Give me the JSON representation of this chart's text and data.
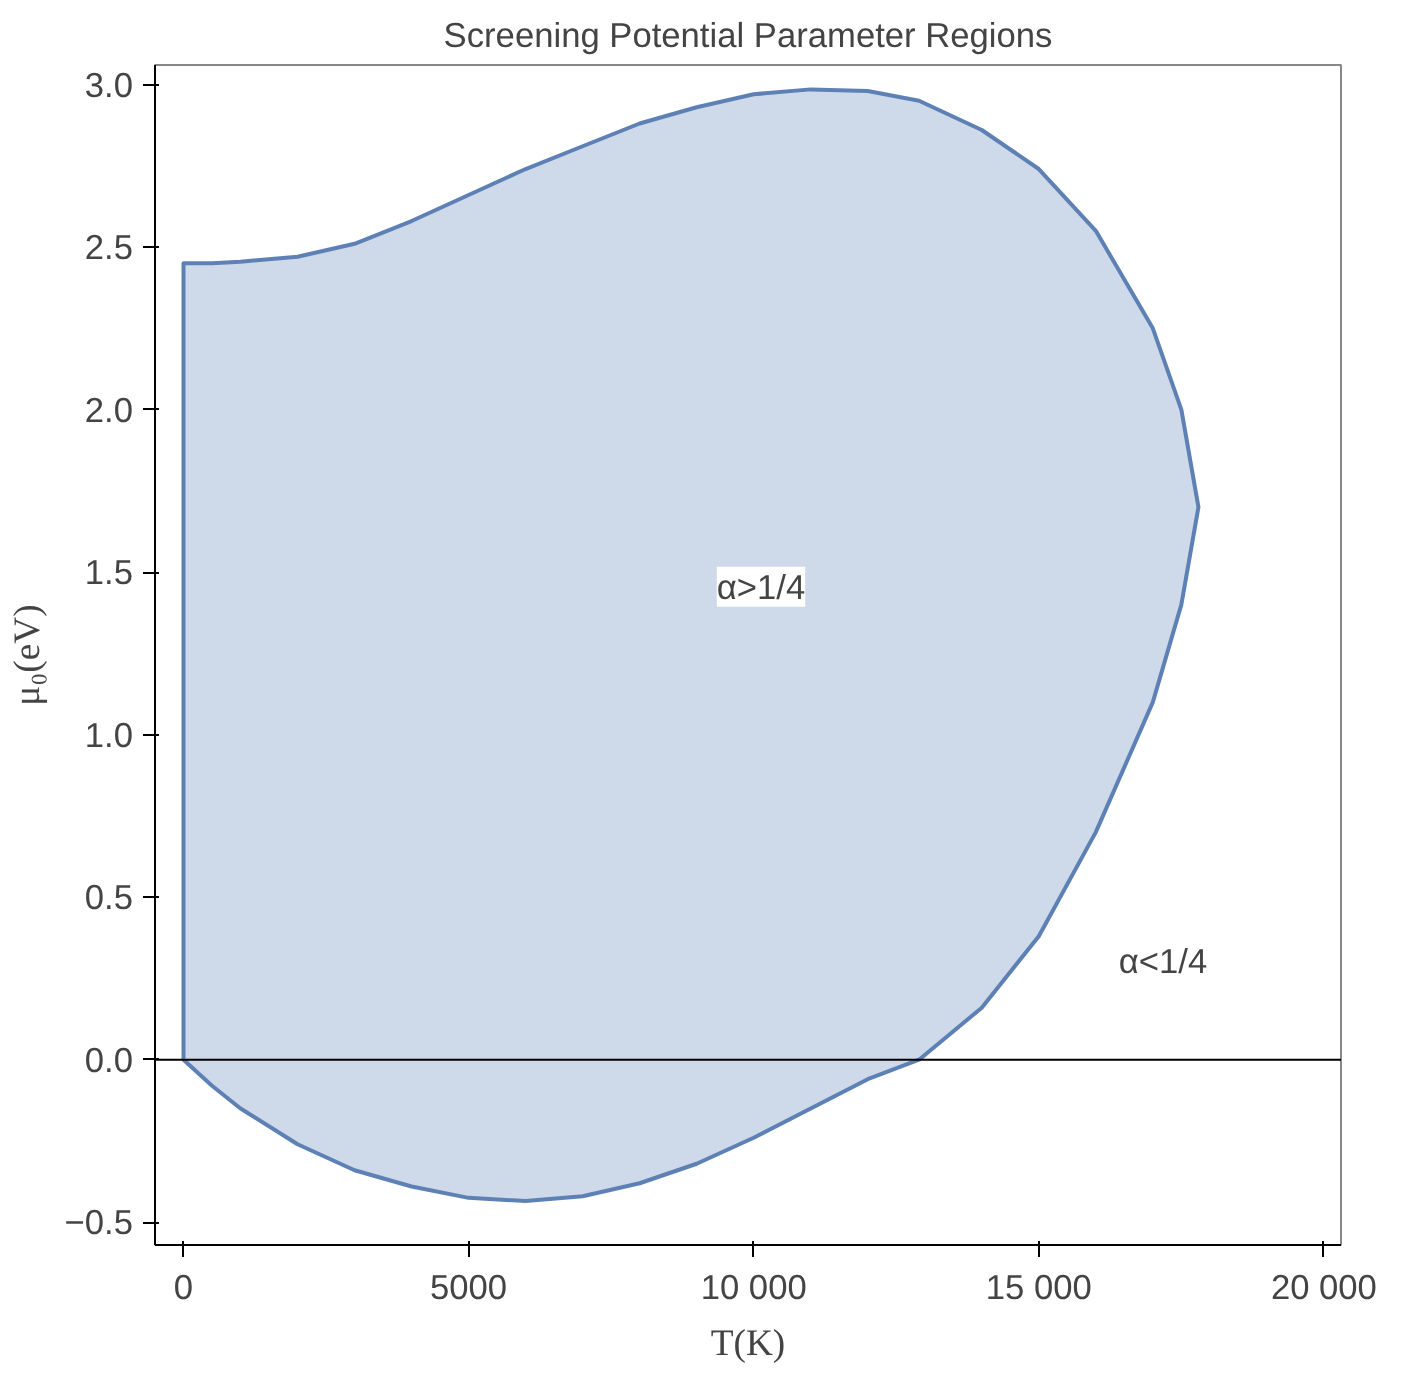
{
  "chart_data": {
    "type": "area",
    "title": "Screening Potential Parameter Regions",
    "xlabel": "T(K)",
    "ylabel": "μ₀(eV)",
    "series": [
      {
        "color": "#5e81b5",
        "x": [
          0,
          500,
          1000,
          2000,
          3000,
          4000,
          5000,
          6000,
          7000,
          8000,
          9000,
          10000,
          11000,
          12000,
          12900,
          14000,
          15000,
          16000,
          17000,
          17500,
          17800,
          17500,
          17000,
          16000,
          15000,
          14000,
          12900,
          12000,
          11000,
          10000,
          9000,
          8000,
          7000,
          6000,
          5000,
          4000,
          3000,
          2000,
          1000,
          500,
          0
        ],
        "values": [
          2.45,
          2.45,
          2.455,
          2.47,
          2.51,
          2.58,
          2.66,
          2.74,
          2.81,
          2.88,
          2.93,
          2.97,
          2.985,
          2.98,
          2.95,
          2.86,
          2.74,
          2.55,
          2.25,
          2.0,
          1.7,
          1.4,
          1.1,
          0.7,
          0.38,
          0.16,
          0,
          -0.06,
          -0.15,
          -0.24,
          -0.32,
          -0.38,
          -0.42,
          -0.435,
          -0.425,
          -0.39,
          -0.34,
          -0.26,
          -0.15,
          -0.08,
          0
        ]
      }
    ],
    "xlim": [
      -500,
      20300
    ],
    "ylim": [
      -0.57,
      3.06
    ],
    "xticks": [
      0,
      5000,
      {
        "value": 10000,
        "label": "10 000"
      },
      {
        "value": 15000,
        "label": "15 000"
      },
      {
        "value": 20000,
        "label": "20 000"
      }
    ],
    "yticks": [
      {
        "value": -0.5,
        "label": "−0.5"
      },
      {
        "value": 0,
        "label": "0.0"
      },
      {
        "value": 0.5,
        "label": "0.5"
      },
      {
        "value": 1,
        "label": "1.0"
      },
      {
        "value": 1.5,
        "label": "1.5"
      },
      {
        "value": 2,
        "label": "2.0"
      },
      {
        "value": 2.5,
        "label": "2.5"
      },
      {
        "value": 3,
        "label": "3.0"
      }
    ],
    "ref_lines": [
      {
        "axis": "y",
        "value": 0,
        "label": null,
        "color": "#000000"
      }
    ],
    "annotations": [
      "α>1/4",
      "α<1/4"
    ],
    "grid": false
  }
}
